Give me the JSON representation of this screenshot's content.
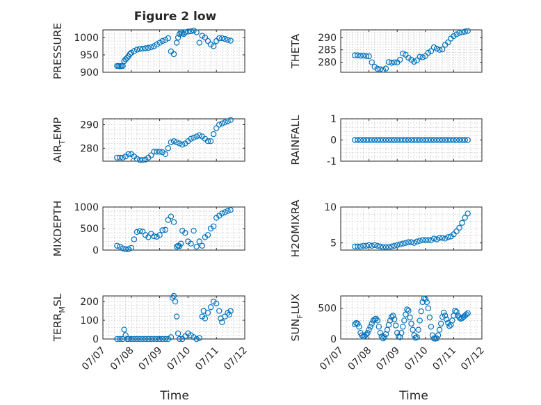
{
  "figure": {
    "title": "Figure 2 low",
    "xlabel": "Time"
  },
  "chart_data": [
    {
      "type": "scatter",
      "ylabel": "PRESSURE",
      "yticks": [
        900,
        950,
        1000
      ],
      "ylim": [
        900,
        1022
      ],
      "xticks": [
        "07/07",
        "07/08",
        "07/09",
        "07/10",
        "07/11",
        "07/12"
      ],
      "xlim": [
        0,
        5
      ],
      "grid": true,
      "marker": "o",
      "x": [
        0.5,
        0.55,
        0.6,
        0.65,
        0.7,
        0.75,
        0.8,
        0.85,
        0.9,
        0.95,
        1.0,
        1.1,
        1.2,
        1.3,
        1.4,
        1.5,
        1.6,
        1.7,
        1.8,
        1.9,
        2.0,
        2.1,
        2.2,
        2.3,
        2.4,
        2.5,
        2.6,
        2.65,
        2.7,
        2.75,
        2.8,
        2.85,
        2.9,
        3.0,
        3.1,
        3.2,
        3.3,
        3.4,
        3.5,
        3.6,
        3.7,
        3.8,
        3.9,
        4.0,
        4.1,
        4.2,
        4.3,
        4.4,
        4.5
      ],
      "y": [
        918,
        918,
        917,
        918,
        918,
        932,
        937,
        941,
        946,
        952,
        956,
        961,
        965,
        967,
        968,
        969,
        970,
        972,
        975,
        980,
        985,
        990,
        993,
        998,
        960,
        952,
        985,
        1000,
        1010,
        1015,
        1012,
        1010,
        1015,
        1017,
        1018,
        1020,
        1015,
        985,
        1005,
        1000,
        990,
        980,
        975,
        990,
        998,
        998,
        996,
        993,
        991
      ]
    },
    {
      "type": "scatter",
      "ylabel": "THETA",
      "yticks": [
        280,
        285,
        290
      ],
      "ylim": [
        276,
        293
      ],
      "xticks": [
        "07/07",
        "07/08",
        "07/09",
        "07/10",
        "07/11",
        "07/12"
      ],
      "xlim": [
        0,
        5
      ],
      "grid": true,
      "marker": "o",
      "x": [
        0.5,
        0.6,
        0.7,
        0.8,
        0.9,
        1.0,
        1.1,
        1.2,
        1.3,
        1.4,
        1.5,
        1.6,
        1.7,
        1.8,
        1.9,
        2.0,
        2.1,
        2.2,
        2.3,
        2.4,
        2.5,
        2.6,
        2.7,
        2.8,
        2.9,
        3.0,
        3.1,
        3.2,
        3.3,
        3.4,
        3.5,
        3.6,
        3.7,
        3.8,
        3.9,
        4.0,
        4.1,
        4.2,
        4.3,
        4.4,
        4.5
      ],
      "y": [
        282.8,
        282.8,
        282.6,
        282.7,
        282.5,
        282.4,
        280.0,
        278.2,
        277.4,
        277.2,
        277.0,
        277.5,
        280.1,
        279.8,
        280.0,
        279.9,
        281.0,
        283.5,
        283.0,
        281.8,
        281.0,
        280.2,
        280.8,
        282.2,
        282.0,
        282.5,
        283.8,
        284.5,
        286.0,
        285.5,
        285.0,
        285.2,
        287.0,
        288.0,
        289.5,
        290.5,
        291.2,
        291.8,
        292.0,
        292.3,
        292.6
      ]
    },
    {
      "type": "scatter",
      "ylabel": "AIR_TEMP",
      "yticks": [
        280,
        290
      ],
      "ylim": [
        274.5,
        292.5
      ],
      "xticks": [
        "07/07",
        "07/08",
        "07/09",
        "07/10",
        "07/11",
        "07/12"
      ],
      "xlim": [
        0,
        5
      ],
      "grid": true,
      "marker": "o",
      "x": [
        0.5,
        0.6,
        0.7,
        0.8,
        0.9,
        1.0,
        1.1,
        1.2,
        1.3,
        1.4,
        1.5,
        1.6,
        1.7,
        1.8,
        1.9,
        2.0,
        2.1,
        2.2,
        2.3,
        2.4,
        2.5,
        2.6,
        2.7,
        2.8,
        2.9,
        3.0,
        3.1,
        3.2,
        3.3,
        3.4,
        3.5,
        3.6,
        3.7,
        3.8,
        3.9,
        4.0,
        4.1,
        4.2,
        4.3,
        4.4,
        4.5
      ],
      "y": [
        276.0,
        276.0,
        276.0,
        276.5,
        277.5,
        277.5,
        276.5,
        275.5,
        275.0,
        275.0,
        275.2,
        276.0,
        277.0,
        278.5,
        278.5,
        278.5,
        278.3,
        277.5,
        280.0,
        282.5,
        283.0,
        282.5,
        282.0,
        281.5,
        282.0,
        283.0,
        284.0,
        284.5,
        285.0,
        285.5,
        285.0,
        284.0,
        283.0,
        283.0,
        286.0,
        288.5,
        290.0,
        290.5,
        291.0,
        291.5,
        292.0
      ]
    },
    {
      "type": "scatter",
      "ylabel": "RAINFALL",
      "yticks": [
        -1,
        0,
        1
      ],
      "ylim": [
        -1,
        1
      ],
      "xticks": [
        "07/07",
        "07/08",
        "07/09",
        "07/10",
        "07/11",
        "07/12"
      ],
      "xlim": [
        0,
        5
      ],
      "grid": true,
      "marker": "o",
      "x": [
        0.5,
        0.6,
        0.7,
        0.8,
        0.9,
        1.0,
        1.1,
        1.2,
        1.3,
        1.4,
        1.5,
        1.6,
        1.7,
        1.8,
        1.9,
        2.0,
        2.1,
        2.2,
        2.3,
        2.4,
        2.5,
        2.6,
        2.7,
        2.8,
        2.9,
        3.0,
        3.1,
        3.2,
        3.3,
        3.4,
        3.5,
        3.6,
        3.7,
        3.8,
        3.9,
        4.0,
        4.1,
        4.2,
        4.3,
        4.4,
        4.5
      ],
      "y": [
        0,
        0,
        0,
        0,
        0,
        0,
        0,
        0,
        0,
        0,
        0,
        0,
        0,
        0,
        0,
        0,
        0,
        0,
        0,
        0,
        0,
        0,
        0,
        0,
        0,
        0,
        0,
        0,
        0,
        0,
        0,
        0,
        0,
        0,
        0,
        0,
        0,
        0,
        0,
        0,
        0
      ]
    },
    {
      "type": "scatter",
      "ylabel": "MIXDEPTH",
      "yticks": [
        0,
        500,
        1000
      ],
      "ylim": [
        0,
        1000
      ],
      "xticks": [
        "07/07",
        "07/08",
        "07/09",
        "07/10",
        "07/11",
        "07/12"
      ],
      "xlim": [
        0,
        5
      ],
      "grid": true,
      "marker": "o",
      "x": [
        0.5,
        0.6,
        0.7,
        0.8,
        0.9,
        1.0,
        1.1,
        1.2,
        1.3,
        1.4,
        1.5,
        1.6,
        1.7,
        1.8,
        1.9,
        2.0,
        2.1,
        2.2,
        2.3,
        2.4,
        2.5,
        2.6,
        2.65,
        2.7,
        2.75,
        2.8,
        2.9,
        3.0,
        3.1,
        3.2,
        3.3,
        3.4,
        3.5,
        3.6,
        3.7,
        3.8,
        3.9,
        4.0,
        4.1,
        4.2,
        4.3,
        4.4,
        4.5
      ],
      "y": [
        100,
        80,
        40,
        20,
        20,
        50,
        250,
        420,
        440,
        430,
        350,
        300,
        380,
        320,
        310,
        350,
        460,
        470,
        700,
        780,
        650,
        80,
        100,
        90,
        150,
        450,
        400,
        200,
        150,
        450,
        80,
        200,
        100,
        300,
        350,
        500,
        550,
        750,
        800,
        850,
        880,
        910,
        930
      ]
    },
    {
      "type": "scatter",
      "ylabel": "H2OMIXRA",
      "yticks": [
        5,
        10
      ],
      "ylim": [
        4,
        10
      ],
      "xticks": [
        "07/07",
        "07/08",
        "07/09",
        "07/10",
        "07/11",
        "07/12"
      ],
      "xlim": [
        0,
        5
      ],
      "grid": true,
      "marker": "o",
      "x": [
        0.5,
        0.6,
        0.7,
        0.8,
        0.9,
        1.0,
        1.1,
        1.2,
        1.3,
        1.4,
        1.5,
        1.6,
        1.7,
        1.8,
        1.9,
        2.0,
        2.1,
        2.2,
        2.3,
        2.4,
        2.5,
        2.6,
        2.7,
        2.8,
        2.9,
        3.0,
        3.1,
        3.2,
        3.3,
        3.4,
        3.5,
        3.6,
        3.7,
        3.8,
        3.9,
        4.0,
        4.1,
        4.2,
        4.3,
        4.4,
        4.5
      ],
      "y": [
        4.5,
        4.5,
        4.5,
        4.6,
        4.6,
        4.7,
        4.6,
        4.7,
        4.6,
        4.5,
        4.4,
        4.4,
        4.4,
        4.5,
        4.6,
        4.7,
        4.8,
        4.9,
        5.0,
        5.1,
        5.1,
        5.0,
        5.2,
        5.3,
        5.4,
        5.4,
        5.4,
        5.4,
        5.6,
        5.5,
        5.7,
        5.7,
        5.6,
        5.8,
        5.9,
        6.2,
        6.6,
        7.1,
        7.8,
        8.5,
        9.1
      ]
    },
    {
      "type": "scatter",
      "ylabel": "TERR_MSL",
      "yticks": [
        0,
        100,
        200
      ],
      "ylim": [
        0,
        230
      ],
      "xticks": [
        "07/07",
        "07/08",
        "07/09",
        "07/10",
        "07/11",
        "07/12"
      ],
      "xlim": [
        0,
        5
      ],
      "grid": true,
      "marker": "o",
      "x": [
        0.5,
        0.6,
        0.7,
        0.75,
        0.8,
        0.85,
        0.9,
        1.0,
        1.1,
        1.2,
        1.3,
        1.4,
        1.5,
        1.6,
        1.7,
        1.8,
        1.9,
        2.0,
        2.1,
        2.2,
        2.3,
        2.4,
        2.45,
        2.5,
        2.55,
        2.6,
        2.65,
        2.7,
        2.8,
        2.9,
        3.0,
        3.1,
        3.2,
        3.3,
        3.4,
        3.5,
        3.55,
        3.6,
        3.7,
        3.8,
        3.9,
        4.0,
        4.1,
        4.15,
        4.2,
        4.3,
        4.4,
        4.45,
        4.5
      ],
      "y": [
        0,
        0,
        0,
        50,
        20,
        0,
        0,
        0,
        0,
        0,
        0,
        0,
        0,
        0,
        0,
        0,
        0,
        0,
        0,
        0,
        0,
        10,
        220,
        230,
        200,
        120,
        30,
        0,
        0,
        15,
        30,
        20,
        10,
        0,
        5,
        120,
        150,
        110,
        140,
        170,
        200,
        190,
        150,
        110,
        90,
        120,
        140,
        130,
        150
      ]
    },
    {
      "type": "scatter",
      "ylabel": "SUN_FLUX",
      "yticks": [
        0,
        500
      ],
      "ylim": [
        0,
        700
      ],
      "xticks": [
        "07/07",
        "07/08",
        "07/09",
        "07/10",
        "07/11",
        "07/12"
      ],
      "xlim": [
        0,
        5
      ],
      "grid": true,
      "marker": "o",
      "x": [
        0.5,
        0.55,
        0.6,
        0.65,
        0.7,
        0.75,
        0.8,
        0.85,
        0.9,
        0.95,
        1.0,
        1.05,
        1.1,
        1.15,
        1.2,
        1.25,
        1.3,
        1.35,
        1.4,
        1.45,
        1.5,
        1.55,
        1.6,
        1.65,
        1.7,
        1.75,
        1.8,
        1.85,
        1.9,
        1.95,
        2.0,
        2.05,
        2.1,
        2.15,
        2.2,
        2.25,
        2.3,
        2.35,
        2.4,
        2.45,
        2.5,
        2.55,
        2.6,
        2.65,
        2.7,
        2.75,
        2.8,
        2.85,
        2.9,
        2.95,
        3.0,
        3.05,
        3.1,
        3.15,
        3.2,
        3.25,
        3.3,
        3.35,
        3.4,
        3.45,
        3.5,
        3.55,
        3.6,
        3.65,
        3.7,
        3.75,
        3.8,
        3.85,
        3.9,
        3.95,
        4.0,
        4.05,
        4.1,
        4.15,
        4.2,
        4.25,
        4.3,
        4.35,
        4.4,
        4.45,
        4.5
      ],
      "y": [
        240,
        260,
        250,
        200,
        100,
        60,
        40,
        50,
        70,
        100,
        150,
        200,
        250,
        300,
        320,
        330,
        300,
        200,
        100,
        40,
        10,
        30,
        80,
        150,
        230,
        300,
        360,
        380,
        320,
        220,
        100,
        40,
        30,
        100,
        200,
        300,
        400,
        480,
        460,
        350,
        250,
        150,
        60,
        20,
        30,
        150,
        300,
        450,
        600,
        660,
        650,
        600,
        500,
        350,
        200,
        60,
        10,
        5,
        10,
        60,
        150,
        250,
        360,
        430,
        380,
        320,
        260,
        210,
        230,
        300,
        380,
        460,
        440,
        380,
        350,
        330,
        340,
        360,
        380,
        400,
        420
      ]
    }
  ]
}
